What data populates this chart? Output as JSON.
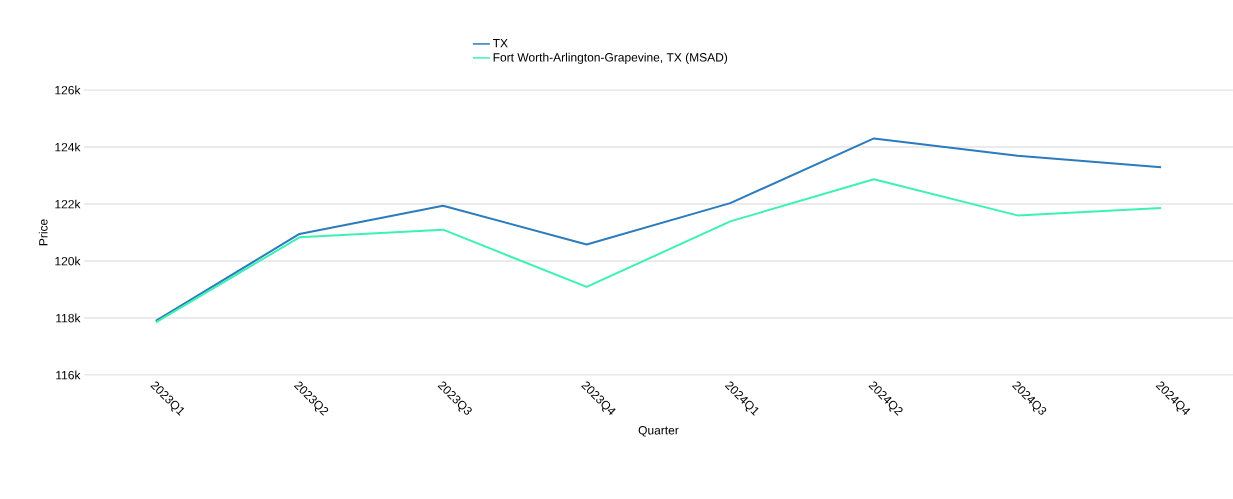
{
  "chart_data": {
    "type": "line",
    "xlabel": "Quarter",
    "ylabel": "Price",
    "categories": [
      "2023Q1",
      "2023Q2",
      "2023Q3",
      "2023Q4",
      "2024Q1",
      "2024Q2",
      "2024Q3",
      "2024Q4"
    ],
    "series": [
      {
        "name": "TX",
        "color": "#2b7bbd",
        "values": [
          117900,
          120950,
          121940,
          120580,
          122030,
          124300,
          123690,
          123290
        ]
      },
      {
        "name": "Fort Worth-Arlington-Grapevine, TX (MSAD)",
        "color": "#3cf2b2",
        "values": [
          117850,
          120830,
          121100,
          119090,
          121390,
          122870,
          121600,
          121860
        ]
      }
    ],
    "ylim": [
      116000,
      126000
    ],
    "yticks": [
      {
        "value": 116000,
        "label": "116k"
      },
      {
        "value": 118000,
        "label": "118k"
      },
      {
        "value": 120000,
        "label": "120k"
      },
      {
        "value": 122000,
        "label": "122k"
      },
      {
        "value": 124000,
        "label": "124k"
      },
      {
        "value": 126000,
        "label": "126k"
      }
    ],
    "grid": "y",
    "legend": "top",
    "marker": "none",
    "line_style": "solid"
  }
}
